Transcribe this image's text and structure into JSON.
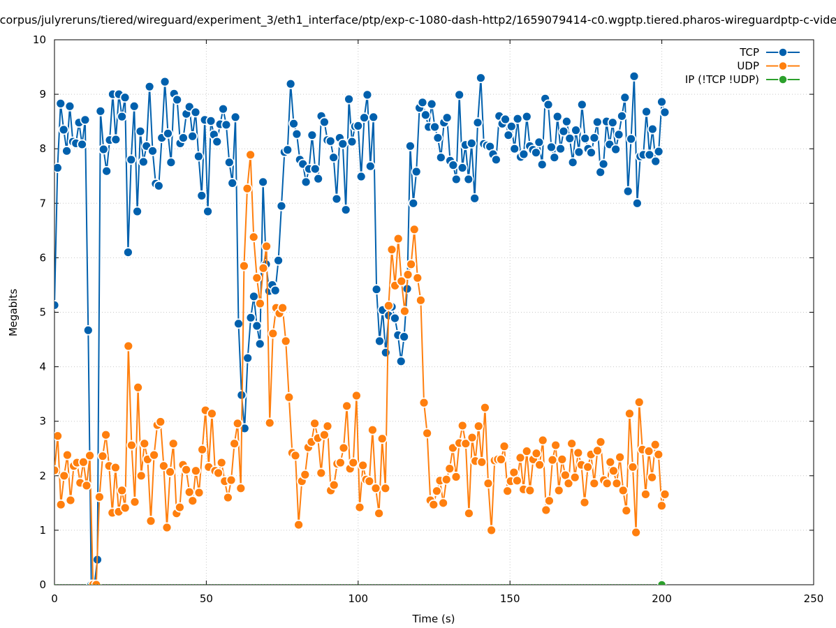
{
  "chart_data": {
    "type": "line",
    "title": "t/corpus/julyreruns/tiered/wireguard/experiment_3/eth1_interface/ptp/exp-c-1080-dash-http2/1659079414-c0.wgptp.tiered.pharos-wireguardptp-c-video",
    "xlabel": "Time (s)",
    "ylabel": "Megabits",
    "xlim": [
      0,
      250
    ],
    "ylim": [
      0,
      10
    ],
    "xticks": [
      0,
      50,
      100,
      150,
      200,
      250
    ],
    "yticks": [
      0,
      1,
      2,
      3,
      4,
      5,
      6,
      7,
      8,
      9,
      10
    ],
    "grid": true,
    "legend_position": "top-right",
    "series": [
      {
        "name": "TCP",
        "color": "#0060ad",
        "t_start": 0,
        "t_step": 1.01,
        "values": [
          5.13,
          7.65,
          8.83,
          8.35,
          7.96,
          8.78,
          8.13,
          8.1,
          8.48,
          8.08,
          8.53,
          4.67,
          0,
          0,
          0.46,
          8.69,
          7.99,
          7.59,
          8.16,
          9.0,
          8.17,
          9.0,
          8.59,
          8.94,
          6.1,
          7.8,
          8.78,
          6.85,
          8.32,
          7.76,
          8.05,
          9.14,
          7.96,
          7.36,
          7.32,
          8.2,
          9.23,
          8.28,
          7.75,
          9.01,
          8.9,
          8.1,
          8.2,
          8.64,
          8.77,
          8.23,
          8.67,
          7.86,
          7.14,
          8.53,
          6.85,
          8.51,
          8.26,
          8.13,
          8.45,
          8.73,
          8.44,
          7.75,
          7.37,
          8.58,
          4.79,
          3.48,
          2.87,
          4.16,
          4.9,
          5.29,
          4.75,
          4.42,
          7.39,
          5.88,
          5.39,
          5.5,
          5.4,
          5.95,
          6.95,
          7.94,
          7.98,
          9.19,
          8.46,
          8.27,
          7.8,
          7.72,
          7.39,
          7.63,
          8.25,
          7.63,
          7.45,
          8.6,
          8.49,
          8.16,
          8.14,
          7.84,
          7.08,
          8.2,
          8.09,
          6.88,
          8.91,
          8.13,
          8.41,
          8.42,
          7.49,
          8.57,
          8.99,
          7.68,
          8.58,
          5.42,
          4.47,
          5.04,
          4.26,
          4.94,
          5.1,
          4.89,
          4.58,
          4.1,
          4.55,
          5.43,
          8.05,
          7.0,
          7.58,
          8.75,
          8.85,
          8.62,
          8.4,
          8.82,
          8.4,
          8.2,
          7.84,
          8.48,
          8.57,
          7.78,
          7.7,
          7.44,
          8.99,
          7.65,
          8.07,
          7.44,
          8.1,
          7.09,
          8.48,
          9.3,
          8.09,
          8.06,
          8.04,
          7.9,
          7.8,
          8.6,
          8.46,
          8.54,
          8.25,
          8.41,
          8.0,
          8.55,
          7.85,
          7.9,
          8.59,
          8.05,
          7.98,
          7.93,
          8.12,
          7.71,
          8.92,
          8.81,
          8.03,
          7.84,
          8.59,
          8.0,
          8.32,
          8.5,
          8.19,
          7.75,
          8.34,
          7.94,
          8.81,
          8.19,
          8.0,
          7.93,
          8.2,
          8.49,
          7.57,
          7.72,
          8.5,
          8.08,
          8.48,
          7.99,
          8.26,
          8.6,
          8.94,
          7.22,
          8.18,
          9.33,
          7.0,
          7.86,
          7.89,
          8.68,
          7.89,
          8.36,
          7.77,
          7.95,
          8.86,
          8.67
        ]
      },
      {
        "name": "UDP",
        "color": "#ff7f0e",
        "t_start": 0,
        "t_step": 1.058,
        "values": [
          2.1,
          2.73,
          1.47,
          2.0,
          2.38,
          1.55,
          2.18,
          2.24,
          1.87,
          2.25,
          1.82,
          2.37,
          0,
          0,
          1.61,
          2.36,
          2.75,
          2.18,
          1.32,
          2.15,
          1.34,
          1.73,
          1.41,
          4.38,
          2.56,
          1.52,
          3.62,
          2.0,
          2.59,
          2.3,
          1.17,
          2.38,
          2.93,
          2.99,
          2.18,
          1.05,
          2.07,
          2.59,
          1.31,
          1.42,
          2.2,
          2.11,
          1.7,
          1.54,
          2.09,
          1.69,
          2.48,
          3.2,
          2.16,
          3.14,
          2.09,
          2.05,
          2.24,
          1.9,
          1.6,
          1.92,
          2.59,
          2.96,
          1.77,
          5.85,
          7.27,
          7.89,
          6.38,
          5.63,
          5.16,
          5.81,
          6.21,
          2.97,
          4.61,
          5.08,
          4.98,
          5.08,
          4.47,
          3.44,
          2.42,
          2.37,
          1.1,
          1.9,
          2.02,
          2.52,
          2.62,
          2.96,
          2.69,
          2.05,
          2.75,
          2.91,
          1.73,
          1.83,
          2.22,
          2.24,
          2.51,
          3.28,
          2.13,
          2.24,
          3.47,
          1.42,
          2.19,
          1.93,
          1.9,
          2.84,
          1.77,
          1.31,
          2.68,
          1.77,
          5.12,
          6.15,
          5.49,
          6.35,
          5.57,
          5.02,
          5.69,
          5.88,
          6.52,
          5.63,
          5.22,
          3.34,
          2.78,
          1.55,
          1.47,
          1.72,
          1.91,
          1.5,
          1.93,
          2.13,
          2.51,
          1.98,
          2.6,
          2.92,
          2.59,
          1.31,
          2.7,
          2.27,
          2.91,
          2.25,
          3.25,
          1.86,
          1.0,
          2.28,
          2.3,
          2.3,
          2.54,
          1.72,
          1.9,
          2.06,
          1.91,
          2.33,
          1.75,
          2.45,
          1.73,
          2.3,
          2.41,
          2.2,
          2.65,
          1.37,
          1.54,
          2.29,
          2.56,
          1.73,
          2.3,
          2.01,
          1.86,
          2.59,
          1.97,
          2.42,
          2.2,
          1.51,
          2.16,
          2.39,
          1.86,
          2.46,
          2.62,
          1.92,
          1.86,
          2.25,
          2.09,
          1.86,
          2.34,
          1.73,
          1.36,
          3.14,
          2.16,
          0.96,
          3.35,
          2.48,
          1.66,
          2.45,
          1.97,
          2.57,
          2.39,
          1.45,
          1.66
        ]
      },
      {
        "name": "IP (!TCP  !UDP)",
        "color": "#2ca02c",
        "t_start": 0,
        "t_step": 1,
        "line_only_until": 200,
        "values": [
          0
        ],
        "marker_at": [
          200,
          0
        ]
      }
    ]
  }
}
